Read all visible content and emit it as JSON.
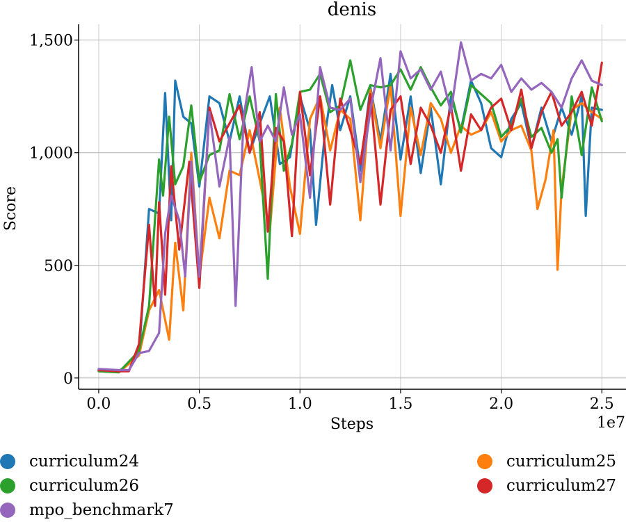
{
  "chart_data": {
    "type": "line",
    "title": "denis",
    "xlabel": "Steps",
    "ylabel": "Score",
    "x_multiplier": "1e7",
    "xlim": [
      -0.1,
      2.62
    ],
    "ylim": [
      -50,
      1570
    ],
    "xticks": [
      0.0,
      0.5,
      1.0,
      1.5,
      2.0,
      2.5
    ],
    "xtick_labels": [
      "0.0",
      "0.5",
      "1.0",
      "1.5",
      "2.0",
      "2.5"
    ],
    "yticks": [
      0,
      500,
      1000,
      1500
    ],
    "ytick_labels": [
      "0",
      "500",
      "1,000",
      "1,500"
    ],
    "grid": true,
    "legend_position": "bottom",
    "series": [
      {
        "name": "curriculum24",
        "color": "#1f77b4",
        "x": [
          0.0,
          0.1,
          0.2,
          0.25,
          0.3,
          0.33,
          0.36,
          0.38,
          0.42,
          0.46,
          0.5,
          0.55,
          0.6,
          0.65,
          0.7,
          0.75,
          0.8,
          0.85,
          0.9,
          0.95,
          1.0,
          1.05,
          1.08,
          1.12,
          1.16,
          1.2,
          1.25,
          1.3,
          1.35,
          1.4,
          1.45,
          1.5,
          1.55,
          1.6,
          1.65,
          1.7,
          1.75,
          1.8,
          1.85,
          1.9,
          1.95,
          2.0,
          2.05,
          2.1,
          2.15,
          2.2,
          2.25,
          2.3,
          2.35,
          2.4,
          2.42,
          2.45,
          2.5
        ],
        "y": [
          35,
          30,
          100,
          750,
          730,
          1265,
          700,
          1320,
          1160,
          1130,
          850,
          1250,
          1220,
          1050,
          1250,
          1000,
          1130,
          1250,
          950,
          980,
          1250,
          1100,
          680,
          1050,
          1300,
          1100,
          1250,
          920,
          1290,
          1050,
          1350,
          970,
          1250,
          910,
          1200,
          860,
          1250,
          1100,
          1320,
          1220,
          1020,
          980,
          1150,
          1220,
          1020,
          1200,
          1050,
          1200,
          1080,
          1250,
          720,
          1200,
          1190
        ]
      },
      {
        "name": "curriculum25",
        "color": "#ff7f0e",
        "x": [
          0.0,
          0.1,
          0.2,
          0.25,
          0.3,
          0.35,
          0.38,
          0.42,
          0.46,
          0.5,
          0.55,
          0.6,
          0.65,
          0.7,
          0.75,
          0.8,
          0.85,
          0.9,
          0.95,
          1.0,
          1.05,
          1.1,
          1.15,
          1.2,
          1.25,
          1.3,
          1.35,
          1.4,
          1.45,
          1.5,
          1.55,
          1.6,
          1.65,
          1.7,
          1.75,
          1.8,
          1.85,
          1.9,
          1.95,
          2.0,
          2.05,
          2.1,
          2.15,
          2.18,
          2.22,
          2.26,
          2.28,
          2.3,
          2.35,
          2.4,
          2.45,
          2.5
        ],
        "y": [
          30,
          25,
          100,
          300,
          390,
          170,
          600,
          300,
          1000,
          450,
          800,
          620,
          920,
          900,
          1100,
          880,
          650,
          1200,
          850,
          640,
          1150,
          1250,
          1010,
          1190,
          1150,
          700,
          1280,
          1020,
          1300,
          720,
          1200,
          990,
          1220,
          1150,
          1000,
          1120,
          1080,
          1100,
          1180,
          1050,
          1100,
          1120,
          1010,
          750,
          880,
          1100,
          480,
          840,
          1190,
          1220,
          1180,
          1150
        ]
      },
      {
        "name": "curriculum26",
        "color": "#2ca02c",
        "x": [
          0.0,
          0.1,
          0.2,
          0.25,
          0.3,
          0.32,
          0.35,
          0.38,
          0.42,
          0.46,
          0.5,
          0.55,
          0.6,
          0.65,
          0.7,
          0.75,
          0.8,
          0.84,
          0.88,
          0.92,
          0.96,
          1.0,
          1.05,
          1.1,
          1.15,
          1.2,
          1.25,
          1.3,
          1.35,
          1.4,
          1.45,
          1.5,
          1.55,
          1.6,
          1.65,
          1.7,
          1.75,
          1.8,
          1.85,
          1.9,
          1.95,
          2.0,
          2.05,
          2.1,
          2.15,
          2.2,
          2.25,
          2.28,
          2.3,
          2.35,
          2.4,
          2.45,
          2.5
        ],
        "y": [
          30,
          25,
          120,
          320,
          970,
          810,
          1160,
          860,
          940,
          1210,
          870,
          990,
          1010,
          1260,
          1060,
          1250,
          1050,
          440,
          1260,
          920,
          1040,
          1270,
          1280,
          1350,
          1180,
          1210,
          1410,
          1190,
          1300,
          1290,
          1300,
          1370,
          1280,
          1380,
          1290,
          1210,
          1270,
          1090,
          1300,
          1260,
          1220,
          1070,
          1120,
          1240,
          1070,
          1110,
          1000,
          1060,
          800,
          1250,
          990,
          1290,
          1140
        ]
      },
      {
        "name": "curriculum27",
        "color": "#d62728",
        "x": [
          0.0,
          0.1,
          0.15,
          0.2,
          0.25,
          0.28,
          0.3,
          0.33,
          0.36,
          0.4,
          0.45,
          0.5,
          0.55,
          0.6,
          0.65,
          0.7,
          0.75,
          0.8,
          0.84,
          0.88,
          0.92,
          0.96,
          1.0,
          1.05,
          1.1,
          1.15,
          1.2,
          1.25,
          1.3,
          1.35,
          1.4,
          1.45,
          1.5,
          1.55,
          1.6,
          1.65,
          1.7,
          1.75,
          1.8,
          1.85,
          1.9,
          1.95,
          2.0,
          2.05,
          2.1,
          2.15,
          2.2,
          2.25,
          2.3,
          2.35,
          2.4,
          2.45,
          2.5
        ],
        "y": [
          35,
          30,
          30,
          150,
          680,
          320,
          780,
          370,
          940,
          570,
          960,
          400,
          1200,
          1050,
          1130,
          1210,
          1000,
          1180,
          650,
          1110,
          1050,
          630,
          1270,
          900,
          1250,
          770,
          1240,
          1100,
          950,
          1260,
          770,
          1190,
          1250,
          950,
          1200,
          1120,
          1000,
          1210,
          920,
          1170,
          1100,
          1200,
          1240,
          1100,
          1280,
          1020,
          1180,
          1270,
          1120,
          1180,
          1270,
          1120,
          1400
        ]
      },
      {
        "name": "mpo_benchmark7",
        "color": "#9467bd",
        "x": [
          0.0,
          0.1,
          0.15,
          0.2,
          0.25,
          0.3,
          0.33,
          0.36,
          0.4,
          0.43,
          0.46,
          0.5,
          0.55,
          0.6,
          0.65,
          0.68,
          0.72,
          0.76,
          0.8,
          0.84,
          0.88,
          0.92,
          0.96,
          1.0,
          1.05,
          1.1,
          1.15,
          1.2,
          1.25,
          1.3,
          1.35,
          1.4,
          1.45,
          1.5,
          1.55,
          1.6,
          1.65,
          1.7,
          1.75,
          1.8,
          1.85,
          1.9,
          1.95,
          2.0,
          2.05,
          2.1,
          2.15,
          2.2,
          2.25,
          2.3,
          2.35,
          2.4,
          2.45,
          2.5
        ],
        "y": [
          40,
          35,
          35,
          110,
          120,
          200,
          640,
          810,
          700,
          450,
          960,
          450,
          1180,
          850,
          1070,
          320,
          1160,
          1380,
          1050,
          1120,
          1050,
          1290,
          1080,
          1170,
          800,
          1380,
          1200,
          1190,
          1240,
          870,
          1190,
          1420,
          1010,
          1450,
          1330,
          1370,
          1280,
          1360,
          1180,
          1490,
          1320,
          1350,
          1330,
          1390,
          1270,
          1330,
          1280,
          1310,
          1270,
          1200,
          1330,
          1410,
          1320,
          1300
        ]
      }
    ]
  }
}
